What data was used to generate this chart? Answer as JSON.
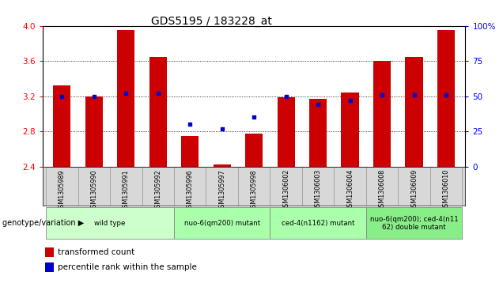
{
  "title": "GDS5195 / 183228_at",
  "samples": [
    "GSM1305989",
    "GSM1305990",
    "GSM1305991",
    "GSM1305992",
    "GSM1305996",
    "GSM1305997",
    "GSM1305998",
    "GSM1306002",
    "GSM1306003",
    "GSM1306004",
    "GSM1306008",
    "GSM1306009",
    "GSM1306010"
  ],
  "bar_values": [
    3.32,
    3.2,
    3.95,
    3.65,
    2.75,
    2.42,
    2.77,
    3.19,
    3.17,
    3.24,
    3.6,
    3.65,
    3.95
  ],
  "dot_values": [
    50,
    50,
    52,
    52,
    30,
    27,
    35,
    50,
    44,
    47,
    51,
    51,
    51
  ],
  "bar_color": "#cc0000",
  "dot_color": "#0000cc",
  "ylim_left": [
    2.4,
    4.0
  ],
  "ylim_right": [
    0,
    100
  ],
  "yticks_left": [
    2.4,
    2.8,
    3.2,
    3.6,
    4.0
  ],
  "yticks_right": [
    0,
    25,
    50,
    75,
    100
  ],
  "ytick_labels_right": [
    "0",
    "25",
    "50",
    "75",
    "100%"
  ],
  "bar_baseline": 2.4,
  "groups": [
    {
      "label": "wild type",
      "indices": [
        0,
        1,
        2,
        3
      ],
      "color": "#ccffcc"
    },
    {
      "label": "nuo-6(qm200) mutant",
      "indices": [
        4,
        5,
        6
      ],
      "color": "#aaffaa"
    },
    {
      "label": "ced-4(n1162) mutant",
      "indices": [
        7,
        8,
        9
      ],
      "color": "#aaffaa"
    },
    {
      "label": "nuo-6(qm200); ced-4(n11\n62) double mutant",
      "indices": [
        10,
        11,
        12
      ],
      "color": "#88ee88"
    }
  ],
  "xlabel_genotype": "genotype/variation",
  "legend_bar": "transformed count",
  "legend_dot": "percentile rank within the sample",
  "title_fontsize": 10
}
